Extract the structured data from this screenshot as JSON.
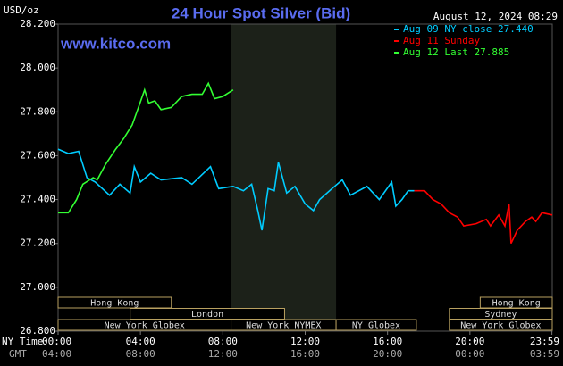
{
  "chart_data": {
    "type": "line",
    "title": "24 Hour Spot Silver (Bid)",
    "timestamp": "August 12, 2024 08:29",
    "watermark": "www.kitco.com",
    "y_label": "USD/oz",
    "x_label_ny": "NY Time",
    "x_label_gmt": "GMT",
    "xlim": [
      0,
      24
    ],
    "xticks": [
      {
        "value": 0,
        "label": "00:00"
      },
      {
        "value": 4,
        "label": "04:00"
      },
      {
        "value": 8,
        "label": "08:00"
      },
      {
        "value": 12,
        "label": "12:00"
      },
      {
        "value": 16,
        "label": "16:00"
      },
      {
        "value": 20,
        "label": "20:00"
      },
      {
        "value": 23.983,
        "label": "23:59"
      }
    ],
    "gmt_labels": [
      "04:00",
      "08:00",
      "12:00",
      "16:00",
      "20:00",
      "00:00",
      "03:59"
    ],
    "ylim": [
      26.8,
      28.2
    ],
    "yticks": [
      {
        "value": 26.8,
        "label": "26.800"
      },
      {
        "value": 27.0,
        "label": "27.000"
      },
      {
        "value": 27.2,
        "label": "27.200"
      },
      {
        "value": 27.4,
        "label": "27.400"
      },
      {
        "value": 27.6,
        "label": "27.600"
      },
      {
        "value": 27.8,
        "label": "27.800"
      },
      {
        "value": 28.0,
        "label": "28.000"
      },
      {
        "value": 28.2,
        "label": "28.200"
      }
    ],
    "grid": false,
    "shaded_hours": [
      8.4,
      13.5
    ],
    "sessions": [
      {
        "name": "Hong Kong",
        "start": 0,
        "end": 5.5,
        "row": 0
      },
      {
        "name": "Hong Kong",
        "start": 20.5,
        "end": 24,
        "row": 0
      },
      {
        "name": "London",
        "start": 3.5,
        "end": 11,
        "row": 1
      },
      {
        "name": "Sydney",
        "start": 19,
        "end": 24,
        "row": 1
      },
      {
        "name": "New York Globex",
        "start": 0,
        "end": 8.4,
        "row": 2
      },
      {
        "name": "New York NYMEX",
        "start": 8.4,
        "end": 13.5,
        "row": 2
      },
      {
        "name": "NY Globex",
        "start": 13.5,
        "end": 17.4,
        "row": 2
      },
      {
        "name": "New York Globex",
        "start": 19,
        "end": 24,
        "row": 2
      }
    ],
    "series": [
      {
        "name": "Aug 09 NY close 27.440",
        "color": "#00ccff",
        "x": [
          0,
          0.5,
          1,
          1.4,
          1.8,
          2.5,
          3,
          3.5,
          3.7,
          4,
          4.5,
          5,
          6,
          6.5,
          7.4,
          7.8,
          8.5,
          9,
          9.4,
          9.7,
          9.9,
          10.2,
          10.5,
          10.7,
          11.1,
          11.5,
          12,
          12.4,
          12.7,
          13.3,
          13.8,
          14.2,
          15,
          15.6,
          16.2,
          16.4,
          16.7,
          17.0,
          17.3
        ],
        "values": [
          27.63,
          27.61,
          27.62,
          27.5,
          27.48,
          27.42,
          27.47,
          27.43,
          27.55,
          27.48,
          27.52,
          27.49,
          27.5,
          27.47,
          27.55,
          27.45,
          27.46,
          27.44,
          27.47,
          27.35,
          27.26,
          27.45,
          27.44,
          27.57,
          27.43,
          27.46,
          27.38,
          27.35,
          27.4,
          27.45,
          27.49,
          27.42,
          27.46,
          27.4,
          27.48,
          27.37,
          27.4,
          27.44,
          27.44
        ]
      },
      {
        "name": "Aug 11 Sunday",
        "color": "#ff0000",
        "x": [
          17.3,
          17.8,
          18.2,
          18.6,
          19,
          19.4,
          19.7,
          20.3,
          20.8,
          21.0,
          21.4,
          21.7,
          21.9,
          22.0,
          22.3,
          22.7,
          23.0,
          23.2,
          23.5,
          24
        ],
        "values": [
          27.44,
          27.44,
          27.4,
          27.38,
          27.34,
          27.32,
          27.28,
          27.29,
          27.31,
          27.28,
          27.33,
          27.28,
          27.38,
          27.2,
          27.26,
          27.3,
          27.32,
          27.3,
          27.34,
          27.33
        ]
      },
      {
        "name": "Aug 12 Last 27.885",
        "color": "#33ff33",
        "x": [
          0,
          0.5,
          0.9,
          1.2,
          1.7,
          1.9,
          2.3,
          2.8,
          3.2,
          3.6,
          3.9,
          4.2,
          4.4,
          4.7,
          5.0,
          5.5,
          6.0,
          6.5,
          7.0,
          7.3,
          7.6,
          8.0,
          8.5
        ],
        "values": [
          27.34,
          27.34,
          27.4,
          27.47,
          27.5,
          27.49,
          27.56,
          27.63,
          27.68,
          27.74,
          27.82,
          27.9,
          27.84,
          27.85,
          27.81,
          27.82,
          27.87,
          27.88,
          27.88,
          27.93,
          27.86,
          27.87,
          27.9
        ]
      }
    ]
  }
}
